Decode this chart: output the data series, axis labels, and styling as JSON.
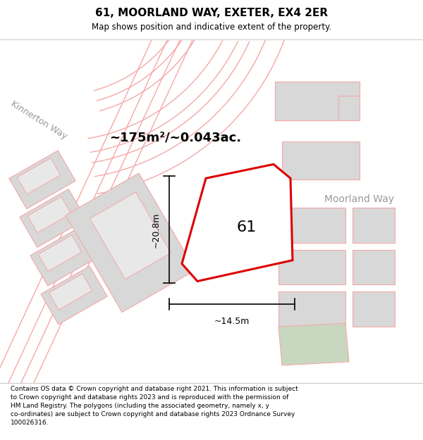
{
  "title": "61, MOORLAND WAY, EXETER, EX4 2ER",
  "subtitle": "Map shows position and indicative extent of the property.",
  "footer": "Contains OS data © Crown copyright and database right 2021. This information is subject\nto Crown copyright and database rights 2023 and is reproduced with the permission of\nHM Land Registry. The polygons (including the associated geometry, namely x, y\nco-ordinates) are subject to Crown copyright and database rights 2023 Ordnance Survey\n100026316.",
  "bg_color": "#ffffff",
  "map_bg": "#f9f9f9",
  "street_label_kinnerton": "Kinnerton Way",
  "street_label_moorland": "Moorland Way",
  "area_label": "~175m²/~0.043ac.",
  "plot_label": "61",
  "dim_height": "~20.8m",
  "dim_width": "~14.5m",
  "red_color": "#dd0000",
  "pink": "#f5a8a8",
  "pink2": "#f9c8c8",
  "grey_fill": "#d8d8d8",
  "grey_light": "#e8e8e8",
  "green_fill": "#c8d8c0",
  "white": "#ffffff",
  "title_fontsize": 11,
  "subtitle_fontsize": 8.5,
  "footer_fontsize": 6.5
}
